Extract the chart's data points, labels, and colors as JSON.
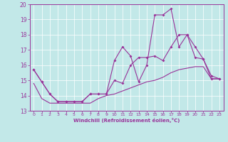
{
  "xlabel": "Windchill (Refroidissement éolien,°C)",
  "ylabel": "",
  "xlim": [
    -0.5,
    23.5
  ],
  "ylim": [
    13,
    20
  ],
  "xticks": [
    0,
    1,
    2,
    3,
    4,
    5,
    6,
    7,
    8,
    9,
    10,
    11,
    12,
    13,
    14,
    15,
    16,
    17,
    18,
    19,
    20,
    21,
    22,
    23
  ],
  "yticks": [
    13,
    14,
    15,
    16,
    17,
    18,
    19,
    20
  ],
  "bg_color": "#c2e8e8",
  "line_color": "#993399",
  "grid_color": "#ffffff",
  "line1_x": [
    0,
    1,
    2,
    3,
    4,
    5,
    6,
    7,
    8,
    9,
    10,
    11,
    12,
    13,
    14,
    15,
    16,
    17,
    18,
    19,
    20,
    21,
    22,
    23
  ],
  "line1_y": [
    15.7,
    14.9,
    14.1,
    13.6,
    13.6,
    13.6,
    13.6,
    14.1,
    14.1,
    14.1,
    16.3,
    17.2,
    16.6,
    14.9,
    16.0,
    19.3,
    19.3,
    19.7,
    17.2,
    18.0,
    16.5,
    16.4,
    15.1,
    15.1
  ],
  "line2_x": [
    0,
    1,
    2,
    3,
    4,
    5,
    6,
    7,
    8,
    9,
    10,
    11,
    12,
    13,
    14,
    15,
    16,
    17,
    18,
    19,
    20,
    21,
    22,
    23
  ],
  "line2_y": [
    15.7,
    14.9,
    14.1,
    13.6,
    13.6,
    13.6,
    13.6,
    14.1,
    14.1,
    14.1,
    15.0,
    14.8,
    16.0,
    16.5,
    16.5,
    16.6,
    16.3,
    17.2,
    18.0,
    18.0,
    17.2,
    16.4,
    15.3,
    15.1
  ],
  "line3_x": [
    0,
    1,
    2,
    3,
    4,
    5,
    6,
    7,
    8,
    9,
    10,
    11,
    12,
    13,
    14,
    15,
    16,
    17,
    18,
    19,
    20,
    21,
    22,
    23
  ],
  "line3_y": [
    14.8,
    13.8,
    13.5,
    13.5,
    13.5,
    13.5,
    13.5,
    13.5,
    13.8,
    14.0,
    14.1,
    14.3,
    14.5,
    14.7,
    14.9,
    15.0,
    15.2,
    15.5,
    15.7,
    15.8,
    15.9,
    15.9,
    15.1,
    15.1
  ]
}
